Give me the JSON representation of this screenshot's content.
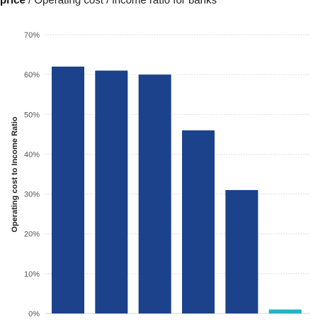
{
  "header": {
    "title_bold": "price",
    "title_rest": " / Operating cost / income ratio for banks"
  },
  "colors": {
    "bar": "#1b428a",
    "highlight_bar": "#22b3c4",
    "grid": "#d4d4d4",
    "tick_text": "#555555"
  },
  "chart_data": {
    "type": "bar",
    "title": "Operating cost / income ratio for banks",
    "ylabel": "Operating cost to Income Ratio",
    "xlabel": "",
    "ylim": [
      0,
      70
    ],
    "yticks": [
      0,
      10,
      20,
      30,
      40,
      50,
      60,
      70
    ],
    "ytick_labels": [
      "0%",
      "10%",
      "20%",
      "30%",
      "40%",
      "50%",
      "60%",
      "70%"
    ],
    "categories": [
      "",
      "",
      "",
      "",
      "",
      ""
    ],
    "values": [
      62,
      61,
      60,
      46,
      31,
      1
    ],
    "grid": true,
    "legend": "none"
  }
}
